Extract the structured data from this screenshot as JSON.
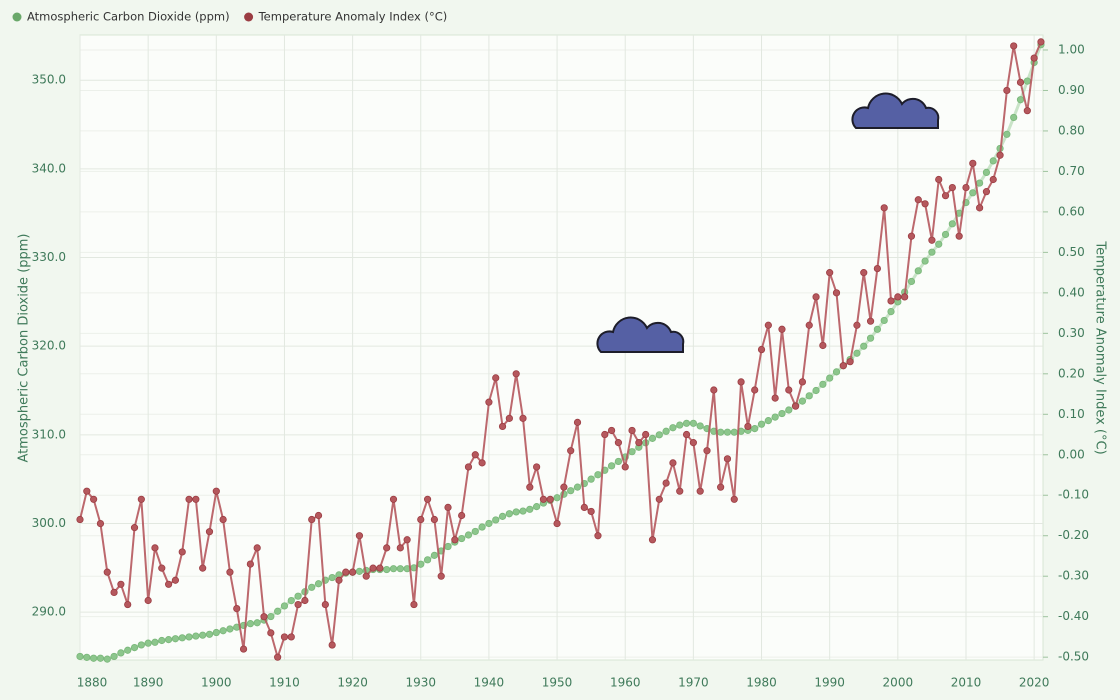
{
  "chart_data": {
    "type": "line",
    "x": [
      1880,
      1881,
      1882,
      1883,
      1884,
      1885,
      1886,
      1887,
      1888,
      1889,
      1890,
      1891,
      1892,
      1893,
      1894,
      1895,
      1896,
      1897,
      1898,
      1899,
      1900,
      1901,
      1902,
      1903,
      1904,
      1905,
      1906,
      1907,
      1908,
      1909,
      1910,
      1911,
      1912,
      1913,
      1914,
      1915,
      1916,
      1917,
      1918,
      1919,
      1920,
      1921,
      1922,
      1923,
      1924,
      1925,
      1926,
      1927,
      1928,
      1929,
      1930,
      1931,
      1932,
      1933,
      1934,
      1935,
      1936,
      1937,
      1938,
      1939,
      1940,
      1941,
      1942,
      1943,
      1944,
      1945,
      1946,
      1947,
      1948,
      1949,
      1950,
      1951,
      1952,
      1953,
      1954,
      1955,
      1956,
      1957,
      1958,
      1959,
      1960,
      1961,
      1962,
      1963,
      1964,
      1965,
      1966,
      1967,
      1968,
      1969,
      1970,
      1971,
      1972,
      1973,
      1974,
      1975,
      1976,
      1977,
      1978,
      1979,
      1980,
      1981,
      1982,
      1983,
      1984,
      1985,
      1986,
      1987,
      1988,
      1989,
      1990,
      1991,
      1992,
      1993,
      1994,
      1995,
      1996,
      1997,
      1998,
      1999,
      2000,
      2001,
      2002,
      2003,
      2004,
      2005,
      2006,
      2007,
      2008,
      2009,
      2010,
      2011,
      2012,
      2013,
      2014,
      2015,
      2016,
      2017,
      2018,
      2019,
      2020,
      2021
    ],
    "series": [
      {
        "name": "Atmospheric Carbon Dioxide (ppm)",
        "color": "#8cc68c",
        "axis": "y",
        "values": [
          285.0,
          284.9,
          284.8,
          284.8,
          284.7,
          285.0,
          285.4,
          285.7,
          286.0,
          286.3,
          286.5,
          286.6,
          286.8,
          286.9,
          287.0,
          287.1,
          287.2,
          287.3,
          287.4,
          287.5,
          287.7,
          287.9,
          288.1,
          288.3,
          288.5,
          288.7,
          288.8,
          289.1,
          289.5,
          290.1,
          290.7,
          291.3,
          291.8,
          292.3,
          292.8,
          293.2,
          293.6,
          293.9,
          294.2,
          294.4,
          294.5,
          294.6,
          294.7,
          294.8,
          294.8,
          294.8,
          294.9,
          294.9,
          294.9,
          295.0,
          295.4,
          295.9,
          296.4,
          296.9,
          297.4,
          297.9,
          298.3,
          298.7,
          299.1,
          299.6,
          300.0,
          300.4,
          300.8,
          301.1,
          301.3,
          301.4,
          301.6,
          301.9,
          302.3,
          302.6,
          302.9,
          303.3,
          303.7,
          304.1,
          304.5,
          305.0,
          305.5,
          306.0,
          306.5,
          307.0,
          307.5,
          308.1,
          308.6,
          309.1,
          309.6,
          310.0,
          310.4,
          310.8,
          311.1,
          311.3,
          311.3,
          311.0,
          310.7,
          310.4,
          310.3,
          310.3,
          310.3,
          310.4,
          310.5,
          310.7,
          311.2,
          311.6,
          312.0,
          312.4,
          312.8,
          313.3,
          313.8,
          314.4,
          315.0,
          315.7,
          316.4,
          317.1,
          317.8,
          318.5,
          319.2,
          320.0,
          320.9,
          321.9,
          322.9,
          323.9,
          325.0,
          326.1,
          327.3,
          328.5,
          329.6,
          330.6,
          331.5,
          332.6,
          333.8,
          335.0,
          336.2,
          337.3,
          338.4,
          339.6,
          340.9,
          342.3,
          343.9,
          345.8,
          347.8,
          349.9,
          352.0,
          354.0
        ]
      },
      {
        "name": "Temperature Anomaly Index (°C)",
        "color": "#b5585d",
        "axis": "y2",
        "values": [
          -0.16,
          -0.09,
          -0.11,
          -0.17,
          -0.29,
          -0.34,
          -0.32,
          -0.37,
          -0.18,
          -0.11,
          -0.36,
          -0.23,
          -0.28,
          -0.32,
          -0.31,
          -0.24,
          -0.11,
          -0.11,
          -0.28,
          -0.19,
          -0.09,
          -0.16,
          -0.29,
          -0.38,
          -0.48,
          -0.27,
          -0.23,
          -0.4,
          -0.44,
          -0.5,
          -0.45,
          -0.45,
          -0.37,
          -0.36,
          -0.16,
          -0.15,
          -0.37,
          -0.47,
          -0.31,
          -0.29,
          -0.29,
          -0.2,
          -0.3,
          -0.28,
          -0.28,
          -0.23,
          -0.11,
          -0.23,
          -0.21,
          -0.37,
          -0.16,
          -0.11,
          -0.16,
          -0.3,
          -0.13,
          -0.21,
          -0.15,
          -0.03,
          0.0,
          -0.02,
          0.13,
          0.19,
          0.07,
          0.09,
          0.2,
          0.09,
          -0.08,
          -0.03,
          -0.11,
          -0.11,
          -0.17,
          -0.08,
          0.01,
          0.08,
          -0.13,
          -0.14,
          -0.2,
          0.05,
          0.06,
          0.03,
          -0.03,
          0.06,
          0.03,
          0.05,
          -0.21,
          -0.11,
          -0.07,
          -0.02,
          -0.09,
          0.05,
          0.03,
          -0.09,
          0.01,
          0.16,
          -0.08,
          -0.01,
          -0.11,
          0.18,
          0.07,
          0.16,
          0.26,
          0.32,
          0.14,
          0.31,
          0.16,
          0.12,
          0.18,
          0.32,
          0.39,
          0.27,
          0.45,
          0.4,
          0.22,
          0.23,
          0.32,
          0.45,
          0.33,
          0.46,
          0.61,
          0.38,
          0.39,
          0.39,
          0.54,
          0.63,
          0.62,
          0.53,
          0.68,
          0.64,
          0.66,
          0.54,
          0.66,
          0.72,
          0.61,
          0.65,
          0.68,
          0.74,
          0.9,
          1.01,
          0.92,
          0.85,
          0.98,
          1.02
        ]
      }
    ],
    "y_label": "Atmospheric Carbon Dioxide (ppm)",
    "y2_label": "Temperature Anomaly Index (°C)",
    "xlim": [
      1880,
      2021.3
    ],
    "xticks": [
      1880,
      1890,
      1900,
      1910,
      1920,
      1930,
      1940,
      1950,
      1960,
      1970,
      1980,
      1990,
      2000,
      2010,
      2020
    ],
    "ylim": [
      284.6,
      355.1
    ],
    "yticks": [
      {
        "value": 290,
        "label": "290.0"
      },
      {
        "value": 300,
        "label": "300.0"
      },
      {
        "value": 310,
        "label": "310.0"
      },
      {
        "value": 320,
        "label": "320.0"
      },
      {
        "value": 330,
        "label": "330.0"
      },
      {
        "value": 340,
        "label": "340.0"
      },
      {
        "value": 350,
        "label": "350.0"
      }
    ],
    "y2lim": [
      -0.507,
      1.037
    ],
    "y2ticks": [
      {
        "value": -0.5,
        "label": "-0.50"
      },
      {
        "value": -0.4,
        "label": "-0.40"
      },
      {
        "value": -0.3,
        "label": "-0.30"
      },
      {
        "value": -0.2,
        "label": "-0.20"
      },
      {
        "value": -0.1,
        "label": "-0.10"
      },
      {
        "value": 0,
        "label": "0.00"
      },
      {
        "value": 0.1,
        "label": "0.10"
      },
      {
        "value": 0.2,
        "label": "0.20"
      },
      {
        "value": 0.3,
        "label": "0.30"
      },
      {
        "value": 0.4,
        "label": "0.40"
      },
      {
        "value": 0.5,
        "label": "0.50"
      },
      {
        "value": 0.6,
        "label": "0.60"
      },
      {
        "value": 0.7,
        "label": "0.70"
      },
      {
        "value": 0.8,
        "label": "0.80"
      },
      {
        "value": 0.9,
        "label": "0.90"
      },
      {
        "value": 1.0,
        "label": "1.00"
      }
    ],
    "grid": true,
    "legend": "top-left"
  }
}
